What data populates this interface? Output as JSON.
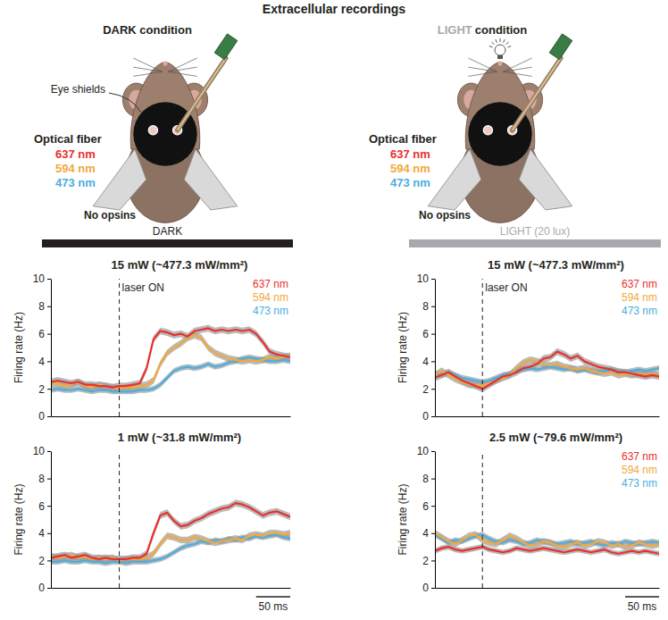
{
  "header": {
    "title": "Extracellular recordings"
  },
  "setups": [
    {
      "condition_parts": [
        {
          "text": "DARK condition",
          "color": "#231f20"
        }
      ],
      "eye_label": "Eye shields",
      "fiber": "Optical fiber",
      "wavelengths": [
        {
          "label": "637 nm",
          "color": "#e8312f"
        },
        {
          "label": "594 nm",
          "color": "#f2a93b"
        },
        {
          "label": "473 nm",
          "color": "#4aaee0"
        }
      ],
      "opsins": "No opsins",
      "light": false,
      "bar": {
        "label": "DARK",
        "color": "#231f20"
      }
    },
    {
      "condition_parts": [
        {
          "text": "LIGHT",
          "color": "#a7a9ac"
        },
        {
          "text": "condition",
          "color": "#231f20"
        }
      ],
      "fiber": "Optical fiber",
      "wavelengths": [
        {
          "label": "637 nm",
          "color": "#e8312f"
        },
        {
          "label": "594 nm",
          "color": "#f2a93b"
        },
        {
          "label": "473 nm",
          "color": "#4aaee0"
        }
      ],
      "opsins": "No opsins",
      "light": true,
      "bar": {
        "label": "LIGHT (20 lux)",
        "color": "#a7a9ac"
      }
    }
  ],
  "chart_data": [
    {
      "type": "line",
      "title": "15 mW (~477.3 mW/mm²)",
      "ylabel": "Firing rate (Hz)",
      "x": [
        -100,
        -90,
        -80,
        -70,
        -60,
        -50,
        -40,
        -30,
        -20,
        -10,
        0,
        10,
        20,
        30,
        40,
        50,
        60,
        70,
        80,
        90,
        100,
        110,
        120,
        130,
        140,
        150,
        160,
        170,
        180,
        190,
        200,
        210,
        220,
        230,
        240,
        250
      ],
      "xlim": [
        -100,
        250
      ],
      "ylim": [
        0,
        10
      ],
      "yticks": [
        0,
        2,
        4,
        6,
        8,
        10
      ],
      "tick_labels": "y",
      "legend": "top-right",
      "annotations": [
        {
          "text": "laser ON",
          "x": 0,
          "line_style": "dashed"
        }
      ],
      "series": [
        {
          "name": "637 nm",
          "color": "#e8312f",
          "error": 0.25,
          "values": [
            2.5,
            2.6,
            2.5,
            2.4,
            2.5,
            2.3,
            2.3,
            2.2,
            2.2,
            2.1,
            2.2,
            2.2,
            2.3,
            2.4,
            3.5,
            5.6,
            6.2,
            6.1,
            5.9,
            6.0,
            5.8,
            6.2,
            6.3,
            6.4,
            6.2,
            6.3,
            6.2,
            6.3,
            6.2,
            6.3,
            6.0,
            5.4,
            4.7,
            4.5,
            4.4,
            4.3
          ]
        },
        {
          "name": "594 nm",
          "color": "#f2a93b",
          "error": 0.25,
          "values": [
            2.3,
            2.4,
            2.2,
            2.3,
            2.5,
            2.2,
            2.1,
            2.3,
            2.2,
            2.1,
            2.0,
            2.1,
            2.1,
            2.2,
            2.3,
            2.6,
            3.8,
            4.6,
            5.0,
            5.3,
            5.7,
            5.9,
            5.7,
            5.0,
            4.6,
            4.4,
            4.2,
            4.1,
            4.0,
            4.1,
            4.0,
            4.1,
            4.3,
            4.2,
            4.3,
            4.4
          ]
        },
        {
          "name": "473 nm",
          "color": "#4aaee0",
          "error": 0.2,
          "values": [
            1.9,
            2.0,
            1.9,
            1.9,
            2.0,
            1.9,
            1.8,
            1.9,
            1.9,
            1.8,
            1.8,
            1.8,
            1.8,
            1.9,
            1.9,
            2.0,
            2.3,
            2.8,
            3.3,
            3.5,
            3.6,
            3.5,
            3.6,
            3.8,
            3.6,
            3.7,
            3.9,
            4.0,
            4.2,
            4.3,
            4.2,
            4.1,
            4.0,
            4.0,
            4.1,
            4.0
          ]
        }
      ]
    },
    {
      "type": "line",
      "title": "1 mW (~31.8 mW/mm²)",
      "ylabel": "Firing rate (Hz)",
      "x": [
        -100,
        -90,
        -80,
        -70,
        -60,
        -50,
        -40,
        -30,
        -20,
        -10,
        0,
        10,
        20,
        30,
        40,
        50,
        60,
        70,
        80,
        90,
        100,
        110,
        120,
        130,
        140,
        150,
        160,
        170,
        180,
        190,
        200,
        210,
        220,
        230,
        240,
        250
      ],
      "xlim": [
        -100,
        250
      ],
      "ylim": [
        0,
        10
      ],
      "yticks": [
        0,
        2,
        4,
        6,
        8,
        10
      ],
      "tick_labels": "y",
      "annotations": [
        {
          "x": 0,
          "line_style": "dashed"
        }
      ],
      "scalebar": {
        "label": "50 ms",
        "value": 50
      },
      "series": [
        {
          "name": "637 nm",
          "color": "#e8312f",
          "error": 0.25,
          "values": [
            2.2,
            2.3,
            2.4,
            2.2,
            2.3,
            2.4,
            2.2,
            2.1,
            2.2,
            2.1,
            2.1,
            2.1,
            2.2,
            2.2,
            2.5,
            4.0,
            5.3,
            5.5,
            4.9,
            4.5,
            4.6,
            4.9,
            5.1,
            5.4,
            5.6,
            5.8,
            5.9,
            6.2,
            6.1,
            5.9,
            5.6,
            5.3,
            5.5,
            5.6,
            5.4,
            5.2
          ]
        },
        {
          "name": "594 nm",
          "color": "#f2a93b",
          "error": 0.25,
          "values": [
            2.3,
            2.2,
            2.3,
            2.4,
            2.2,
            2.3,
            2.1,
            2.2,
            2.1,
            2.2,
            2.0,
            2.1,
            2.1,
            2.1,
            2.2,
            2.5,
            3.2,
            3.8,
            3.7,
            3.5,
            3.5,
            3.7,
            3.6,
            3.4,
            3.3,
            3.4,
            3.5,
            3.6,
            3.5,
            3.8,
            3.9,
            3.8,
            4.0,
            4.0,
            3.9,
            4.0
          ]
        },
        {
          "name": "473 nm",
          "color": "#4aaee0",
          "error": 0.2,
          "values": [
            1.9,
            1.9,
            2.0,
            1.9,
            1.9,
            2.0,
            1.9,
            1.9,
            1.8,
            1.9,
            1.9,
            1.8,
            1.9,
            1.9,
            1.9,
            2.0,
            2.1,
            2.3,
            2.6,
            2.9,
            3.1,
            3.2,
            3.4,
            3.3,
            3.5,
            3.4,
            3.6,
            3.5,
            3.7,
            3.6,
            3.8,
            3.7,
            3.8,
            3.9,
            3.7,
            3.6
          ]
        }
      ]
    },
    {
      "type": "line",
      "title": "15 mW (~477.3 mW/mm²)",
      "ylabel": "Firing rate (Hz)",
      "x": [
        -70,
        -60,
        -50,
        -40,
        -30,
        -20,
        -10,
        0,
        10,
        20,
        30,
        40,
        50,
        60,
        70,
        80,
        90,
        100,
        110,
        120,
        130,
        140,
        150,
        160,
        170,
        180,
        190,
        200,
        210,
        220,
        230,
        240,
        250,
        260
      ],
      "xlim": [
        -70,
        260
      ],
      "ylim": [
        0,
        10
      ],
      "yticks": [
        0,
        2,
        4,
        6,
        8,
        10
      ],
      "tick_labels": "y",
      "legend": "top-right",
      "annotations": [
        {
          "text": "laser ON",
          "x": 0,
          "line_style": "dashed"
        }
      ],
      "series": [
        {
          "name": "637 nm",
          "color": "#e8312f",
          "error": 0.25,
          "values": [
            2.8,
            3.0,
            3.2,
            2.9,
            2.6,
            2.4,
            2.2,
            2.0,
            2.3,
            2.6,
            2.9,
            3.0,
            3.2,
            3.5,
            3.6,
            3.8,
            4.2,
            4.3,
            4.7,
            4.5,
            4.2,
            4.4,
            4.0,
            3.8,
            3.6,
            3.5,
            3.4,
            3.2,
            3.2,
            3.1,
            3.0,
            2.9,
            3.0,
            2.9
          ]
        },
        {
          "name": "594 nm",
          "color": "#f2a93b",
          "error": 0.25,
          "values": [
            3.0,
            3.3,
            3.0,
            2.7,
            2.5,
            2.3,
            2.3,
            2.2,
            2.4,
            2.6,
            2.8,
            3.0,
            3.5,
            3.9,
            4.1,
            4.0,
            3.8,
            3.7,
            3.8,
            3.6,
            3.5,
            3.4,
            3.5,
            3.3,
            3.2,
            3.1,
            3.2,
            3.0,
            3.1,
            3.0,
            3.1,
            3.0,
            3.1,
            3.0
          ]
        },
        {
          "name": "473 nm",
          "color": "#4aaee0",
          "error": 0.2,
          "values": [
            3.1,
            3.0,
            3.2,
            3.0,
            2.8,
            2.7,
            2.6,
            2.5,
            2.6,
            2.8,
            3.0,
            3.1,
            3.3,
            3.4,
            3.5,
            3.4,
            3.5,
            3.6,
            3.5,
            3.4,
            3.5,
            3.3,
            3.4,
            3.3,
            3.2,
            3.3,
            3.4,
            3.3,
            3.2,
            3.3,
            3.4,
            3.3,
            3.4,
            3.5
          ]
        }
      ]
    },
    {
      "type": "line",
      "title": "2.5 mW (~79.6 mW/mm²)",
      "ylabel": "Firing rate (Hz)",
      "x": [
        -70,
        -60,
        -50,
        -40,
        -30,
        -20,
        -10,
        0,
        10,
        20,
        30,
        40,
        50,
        60,
        70,
        80,
        90,
        100,
        110,
        120,
        130,
        140,
        150,
        160,
        170,
        180,
        190,
        200,
        210,
        220,
        230,
        240,
        250,
        260
      ],
      "xlim": [
        -70,
        260
      ],
      "ylim": [
        0,
        10
      ],
      "yticks": [
        0,
        2,
        4,
        6,
        8,
        10
      ],
      "tick_labels": "y",
      "legend": "top-right",
      "annotations": [
        {
          "x": 0,
          "line_style": "dashed"
        }
      ],
      "scalebar": {
        "label": "50 ms",
        "value": 50
      },
      "series": [
        {
          "name": "637 nm",
          "color": "#e8312f",
          "error": 0.2,
          "values": [
            2.7,
            2.9,
            3.0,
            2.8,
            2.7,
            2.8,
            2.9,
            3.0,
            2.8,
            2.7,
            2.6,
            2.7,
            2.9,
            2.8,
            2.7,
            2.8,
            2.9,
            2.8,
            2.7,
            2.6,
            2.7,
            2.8,
            2.7,
            2.6,
            2.7,
            2.8,
            2.6,
            2.5,
            2.6,
            2.7,
            2.6,
            2.7,
            2.6,
            2.5
          ]
        },
        {
          "name": "594 nm",
          "color": "#f2a93b",
          "error": 0.25,
          "values": [
            4.0,
            3.7,
            3.4,
            3.2,
            3.5,
            3.8,
            3.9,
            3.5,
            3.3,
            3.2,
            3.5,
            3.8,
            3.6,
            3.3,
            3.1,
            3.2,
            3.4,
            3.3,
            3.1,
            3.0,
            3.2,
            3.3,
            3.1,
            3.2,
            3.4,
            3.3,
            3.1,
            3.2,
            3.0,
            3.1,
            3.3,
            3.2,
            3.1,
            3.2
          ]
        },
        {
          "name": "473 nm",
          "color": "#4aaee0",
          "error": 0.2,
          "values": [
            3.9,
            3.6,
            3.3,
            3.5,
            3.4,
            3.6,
            3.8,
            3.9,
            3.6,
            3.4,
            3.3,
            3.5,
            3.4,
            3.2,
            3.3,
            3.5,
            3.4,
            3.3,
            3.2,
            3.3,
            3.4,
            3.2,
            3.3,
            3.4,
            3.2,
            3.1,
            3.3,
            3.2,
            3.4,
            3.3,
            3.2,
            3.3,
            3.4,
            3.3
          ]
        }
      ]
    }
  ]
}
